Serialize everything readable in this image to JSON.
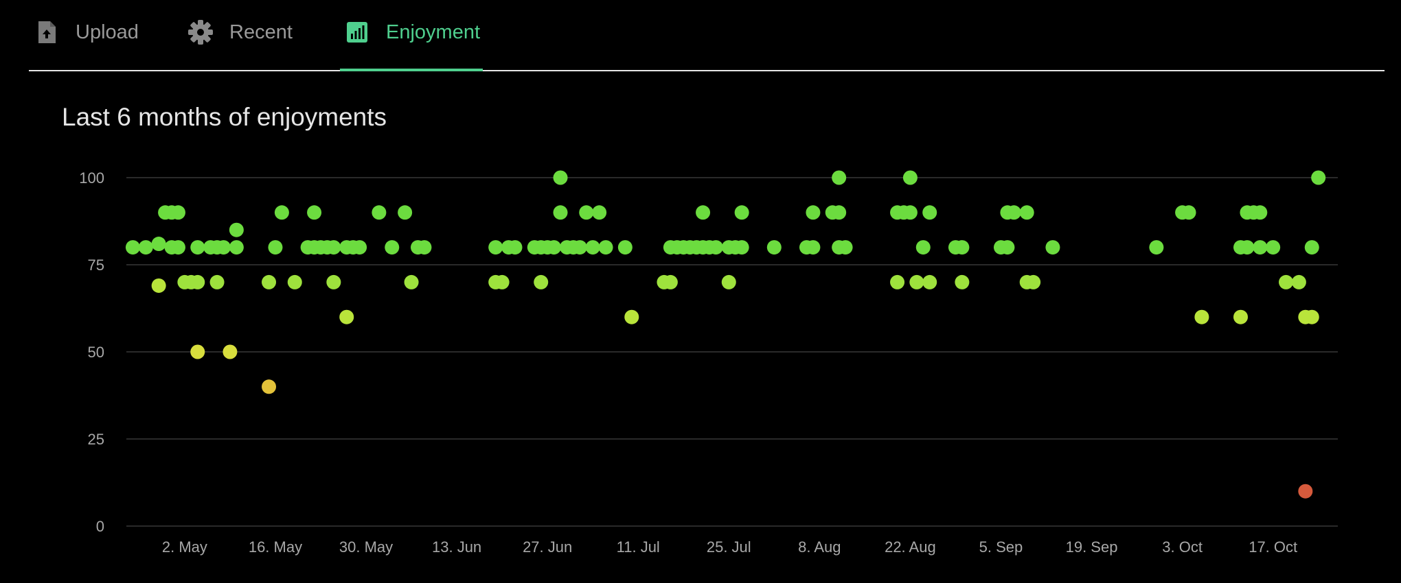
{
  "tabs": [
    {
      "label": "Upload",
      "icon": "upload-file-icon",
      "active": false
    },
    {
      "label": "Recent",
      "icon": "gear-icon",
      "active": false
    },
    {
      "label": "Enjoyment",
      "icon": "bar-chart-icon",
      "active": true
    }
  ],
  "colors": {
    "accent": "#4fcf8e",
    "tab_inactive": "#9a9a9a",
    "grid": "#2a2a2a"
  },
  "section_title": "Last 6 months of enjoyments",
  "chart_data": {
    "type": "scatter",
    "title": "Last 6 months of enjoyments",
    "xlabel": "",
    "ylabel": "",
    "ylim": [
      0,
      100
    ],
    "y_ticks": [
      0,
      25,
      50,
      75,
      100
    ],
    "x_tick_labels": [
      "2. May",
      "16. May",
      "30. May",
      "13. Jun",
      "27. Jun",
      "11. Jul",
      "25. Jul",
      "8. Aug",
      "22. Aug",
      "5. Sep",
      "19. Sep",
      "3. Oct",
      "17. Oct"
    ],
    "x_tick_dates": [
      "05-02",
      "05-16",
      "05-30",
      "06-13",
      "06-27",
      "07-11",
      "07-25",
      "08-08",
      "08-22",
      "09-05",
      "09-19",
      "10-03",
      "10-17"
    ],
    "xlim": [
      "04-23",
      "10-27"
    ],
    "grid": true,
    "color_scale": [
      {
        "min": 0,
        "color": "#d65a3c"
      },
      {
        "min": 40,
        "color": "#e3c23a"
      },
      {
        "min": 50,
        "color": "#d8de3d"
      },
      {
        "min": 60,
        "color": "#b9e43b"
      },
      {
        "min": 70,
        "color": "#9ee23d"
      },
      {
        "min": 80,
        "color": "#6cdc3f"
      }
    ],
    "points": [
      {
        "date": "04-24",
        "value": 80
      },
      {
        "date": "04-26",
        "value": 80
      },
      {
        "date": "04-28",
        "value": 81
      },
      {
        "date": "04-28",
        "value": 69
      },
      {
        "date": "04-29",
        "value": 90
      },
      {
        "date": "04-30",
        "value": 90
      },
      {
        "date": "05-01",
        "value": 90
      },
      {
        "date": "04-30",
        "value": 80
      },
      {
        "date": "05-01",
        "value": 80
      },
      {
        "date": "05-02",
        "value": 70
      },
      {
        "date": "05-03",
        "value": 70
      },
      {
        "date": "05-04",
        "value": 70
      },
      {
        "date": "05-04",
        "value": 80
      },
      {
        "date": "05-04",
        "value": 50
      },
      {
        "date": "05-06",
        "value": 80
      },
      {
        "date": "05-07",
        "value": 80
      },
      {
        "date": "05-08",
        "value": 80
      },
      {
        "date": "05-07",
        "value": 70
      },
      {
        "date": "05-09",
        "value": 50
      },
      {
        "date": "05-10",
        "value": 85
      },
      {
        "date": "05-10",
        "value": 80
      },
      {
        "date": "05-15",
        "value": 70
      },
      {
        "date": "05-15",
        "value": 40
      },
      {
        "date": "05-16",
        "value": 80
      },
      {
        "date": "05-17",
        "value": 90
      },
      {
        "date": "05-19",
        "value": 70
      },
      {
        "date": "05-21",
        "value": 80
      },
      {
        "date": "05-22",
        "value": 90
      },
      {
        "date": "05-22",
        "value": 80
      },
      {
        "date": "05-23",
        "value": 80
      },
      {
        "date": "05-24",
        "value": 80
      },
      {
        "date": "05-25",
        "value": 80
      },
      {
        "date": "05-25",
        "value": 70
      },
      {
        "date": "05-27",
        "value": 80
      },
      {
        "date": "05-27",
        "value": 60
      },
      {
        "date": "05-28",
        "value": 80
      },
      {
        "date": "05-29",
        "value": 80
      },
      {
        "date": "06-01",
        "value": 90
      },
      {
        "date": "06-03",
        "value": 80
      },
      {
        "date": "06-05",
        "value": 90
      },
      {
        "date": "06-06",
        "value": 70
      },
      {
        "date": "06-07",
        "value": 80
      },
      {
        "date": "06-08",
        "value": 80
      },
      {
        "date": "06-19",
        "value": 80
      },
      {
        "date": "06-19",
        "value": 70
      },
      {
        "date": "06-20",
        "value": 70
      },
      {
        "date": "06-21",
        "value": 80
      },
      {
        "date": "06-22",
        "value": 80
      },
      {
        "date": "06-25",
        "value": 80
      },
      {
        "date": "06-26",
        "value": 80
      },
      {
        "date": "06-26",
        "value": 70
      },
      {
        "date": "06-27",
        "value": 80
      },
      {
        "date": "06-28",
        "value": 80
      },
      {
        "date": "06-29",
        "value": 90
      },
      {
        "date": "06-29",
        "value": 100
      },
      {
        "date": "06-30",
        "value": 80
      },
      {
        "date": "07-01",
        "value": 80
      },
      {
        "date": "07-02",
        "value": 80
      },
      {
        "date": "07-03",
        "value": 90
      },
      {
        "date": "07-04",
        "value": 80
      },
      {
        "date": "07-05",
        "value": 90
      },
      {
        "date": "07-06",
        "value": 80
      },
      {
        "date": "07-09",
        "value": 80
      },
      {
        "date": "07-10",
        "value": 60
      },
      {
        "date": "07-15",
        "value": 70
      },
      {
        "date": "07-16",
        "value": 70
      },
      {
        "date": "07-16",
        "value": 80
      },
      {
        "date": "07-17",
        "value": 80
      },
      {
        "date": "07-18",
        "value": 80
      },
      {
        "date": "07-19",
        "value": 80
      },
      {
        "date": "07-20",
        "value": 80
      },
      {
        "date": "07-21",
        "value": 80
      },
      {
        "date": "07-21",
        "value": 90
      },
      {
        "date": "07-22",
        "value": 80
      },
      {
        "date": "07-23",
        "value": 80
      },
      {
        "date": "07-25",
        "value": 80
      },
      {
        "date": "07-25",
        "value": 70
      },
      {
        "date": "07-26",
        "value": 80
      },
      {
        "date": "07-27",
        "value": 80
      },
      {
        "date": "07-27",
        "value": 90
      },
      {
        "date": "08-01",
        "value": 80
      },
      {
        "date": "08-06",
        "value": 80
      },
      {
        "date": "08-07",
        "value": 80
      },
      {
        "date": "08-07",
        "value": 90
      },
      {
        "date": "08-10",
        "value": 90
      },
      {
        "date": "08-11",
        "value": 90
      },
      {
        "date": "08-11",
        "value": 100
      },
      {
        "date": "08-11",
        "value": 80
      },
      {
        "date": "08-12",
        "value": 80
      },
      {
        "date": "08-20",
        "value": 70
      },
      {
        "date": "08-20",
        "value": 90
      },
      {
        "date": "08-21",
        "value": 90
      },
      {
        "date": "08-22",
        "value": 100
      },
      {
        "date": "08-22",
        "value": 90
      },
      {
        "date": "08-23",
        "value": 70
      },
      {
        "date": "08-24",
        "value": 80
      },
      {
        "date": "08-25",
        "value": 70
      },
      {
        "date": "08-25",
        "value": 90
      },
      {
        "date": "08-29",
        "value": 80
      },
      {
        "date": "08-30",
        "value": 80
      },
      {
        "date": "08-30",
        "value": 70
      },
      {
        "date": "09-05",
        "value": 80
      },
      {
        "date": "09-06",
        "value": 80
      },
      {
        "date": "09-06",
        "value": 90
      },
      {
        "date": "09-07",
        "value": 90
      },
      {
        "date": "09-09",
        "value": 90
      },
      {
        "date": "09-09",
        "value": 70
      },
      {
        "date": "09-10",
        "value": 70
      },
      {
        "date": "09-13",
        "value": 80
      },
      {
        "date": "09-29",
        "value": 80
      },
      {
        "date": "10-03",
        "value": 90
      },
      {
        "date": "10-04",
        "value": 90
      },
      {
        "date": "10-06",
        "value": 60
      },
      {
        "date": "10-12",
        "value": 80
      },
      {
        "date": "10-12",
        "value": 60
      },
      {
        "date": "10-13",
        "value": 90
      },
      {
        "date": "10-13",
        "value": 80
      },
      {
        "date": "10-14",
        "value": 90
      },
      {
        "date": "10-15",
        "value": 90
      },
      {
        "date": "10-15",
        "value": 80
      },
      {
        "date": "10-17",
        "value": 80
      },
      {
        "date": "10-19",
        "value": 70
      },
      {
        "date": "10-21",
        "value": 70
      },
      {
        "date": "10-22",
        "value": 10
      },
      {
        "date": "10-22",
        "value": 60
      },
      {
        "date": "10-23",
        "value": 60
      },
      {
        "date": "10-23",
        "value": 80
      },
      {
        "date": "10-24",
        "value": 100
      }
    ]
  }
}
